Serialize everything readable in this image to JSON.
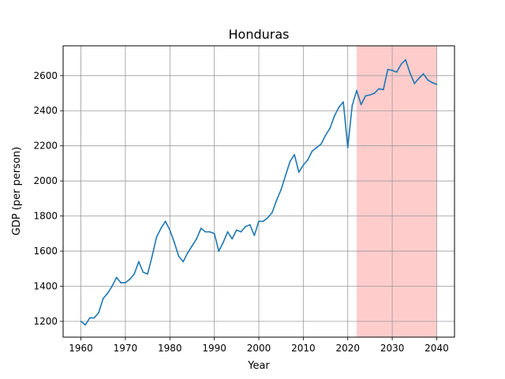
{
  "chart_data": {
    "type": "line",
    "title": "Honduras",
    "xlabel": "Year",
    "ylabel": "GDP (per person)",
    "xlim": [
      1956.0,
      2044.0
    ],
    "ylim": [
      1110,
      2770
    ],
    "xticks": [
      1960,
      1970,
      1980,
      1990,
      2000,
      2010,
      2020,
      2030,
      2040
    ],
    "yticks": [
      1200,
      1400,
      1600,
      1800,
      2000,
      2200,
      2400,
      2600
    ],
    "grid": true,
    "highlight": {
      "x_start": 2022,
      "x_end": 2040,
      "color": "#ffcccc"
    },
    "line_color": "#1f77b4",
    "series": [
      {
        "x": [
          1960,
          1961,
          1962,
          1963,
          1964,
          1965,
          1966,
          1967,
          1968,
          1969,
          1970,
          1971,
          1972,
          1973,
          1974,
          1975,
          1976,
          1977,
          1978,
          1979,
          1980,
          1981,
          1982,
          1983,
          1984,
          1985,
          1986,
          1987,
          1988,
          1989,
          1990,
          1991,
          1992,
          1993,
          1994,
          1995,
          1996,
          1997,
          1998,
          1999,
          2000,
          2001,
          2002,
          2003,
          2004,
          2005,
          2006,
          2007,
          2008,
          2009,
          2010,
          2011,
          2012,
          2013,
          2014,
          2015,
          2016,
          2017,
          2018,
          2019,
          2020,
          2021,
          2022,
          2023,
          2024,
          2025,
          2026,
          2027,
          2028,
          2029,
          2030,
          2031,
          2032,
          2033,
          2034,
          2035,
          2036,
          2037,
          2038,
          2039,
          2040
        ],
        "values": [
          1200,
          1180,
          1220,
          1220,
          1250,
          1330,
          1360,
          1400,
          1450,
          1420,
          1420,
          1440,
          1470,
          1540,
          1480,
          1470,
          1570,
          1680,
          1730,
          1770,
          1720,
          1650,
          1570,
          1540,
          1590,
          1630,
          1670,
          1730,
          1710,
          1710,
          1700,
          1600,
          1650,
          1710,
          1670,
          1720,
          1710,
          1740,
          1750,
          1690,
          1770,
          1770,
          1790,
          1820,
          1890,
          1950,
          2030,
          2110,
          2150,
          2050,
          2090,
          2120,
          2170,
          2190,
          2210,
          2260,
          2300,
          2370,
          2420,
          2450,
          2190,
          2430,
          2515,
          2435,
          2485,
          2490,
          2500,
          2525,
          2520,
          2635,
          2630,
          2620,
          2665,
          2690,
          2615,
          2555,
          2585,
          2610,
          2575,
          2560,
          2550
        ]
      }
    ]
  }
}
